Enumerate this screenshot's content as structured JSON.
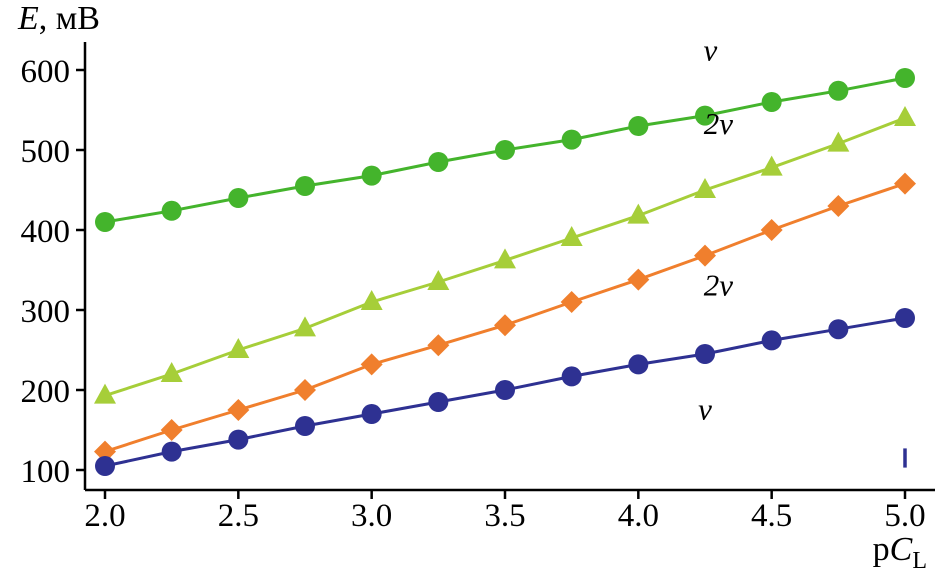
{
  "chart_data": {
    "type": "line",
    "title": "",
    "ylabel": {
      "italic": "E",
      "rest": ", мВ"
    },
    "xlabel": {
      "p": "p",
      "c": "C",
      "sub": "L"
    },
    "xlim": [
      2.0,
      5.0
    ],
    "ylim": [
      100,
      600
    ],
    "grid": false,
    "legend_position": "inline-annotations",
    "x": [
      2.0,
      2.25,
      2.5,
      2.75,
      3.0,
      3.25,
      3.5,
      3.75,
      4.0,
      4.25,
      4.5,
      4.75,
      5.0
    ],
    "x_ticks": [
      2.0,
      2.5,
      3.0,
      3.5,
      4.0,
      4.5,
      5.0
    ],
    "x_tick_labels": [
      "2.0",
      "2.5",
      "3.0",
      "3.5",
      "4.0",
      "4.5",
      "5.0"
    ],
    "y_ticks": [
      100,
      200,
      300,
      400,
      500,
      600
    ],
    "y_tick_labels": [
      "100",
      "200",
      "300",
      "400",
      "500",
      "600"
    ],
    "series": [
      {
        "name": "nu-green-circles",
        "label": "ν",
        "marker": "circle",
        "color": "#44b42c",
        "values": [
          410,
          424,
          440,
          455,
          468,
          485,
          500,
          513,
          530,
          543,
          560,
          574,
          590
        ]
      },
      {
        "name": "2nu-yellowgreen-triangles",
        "label": "2ν",
        "marker": "triangle",
        "color": "#a6ce39",
        "values": [
          193,
          220,
          250,
          277,
          310,
          335,
          362,
          390,
          418,
          450,
          478,
          508,
          540
        ]
      },
      {
        "name": "2nu-orange-diamonds",
        "label": "2ν",
        "marker": "diamond",
        "color": "#f07f2d",
        "values": [
          123,
          150,
          175,
          200,
          232,
          256,
          281,
          310,
          338,
          368,
          400,
          430,
          458
        ]
      },
      {
        "name": "nu-blue-circles",
        "label": "ν",
        "marker": "circle",
        "color": "#2e3192",
        "values": [
          105,
          123,
          138,
          155,
          170,
          185,
          200,
          217,
          232,
          245,
          262,
          276,
          290
        ]
      }
    ],
    "annotations": [
      {
        "text": "ν",
        "x": 4.27,
        "y": 612,
        "color": "#000000"
      },
      {
        "text": "2ν",
        "x": 4.3,
        "y": 520,
        "color": "#000000"
      },
      {
        "text": "2ν",
        "x": 4.3,
        "y": 318,
        "color": "#000000"
      },
      {
        "text": "ν",
        "x": 4.25,
        "y": 163,
        "color": "#000000"
      }
    ],
    "stray_mark": {
      "x": 5.0,
      "y1": 103,
      "y2": 127,
      "color": "#2e3192"
    }
  }
}
